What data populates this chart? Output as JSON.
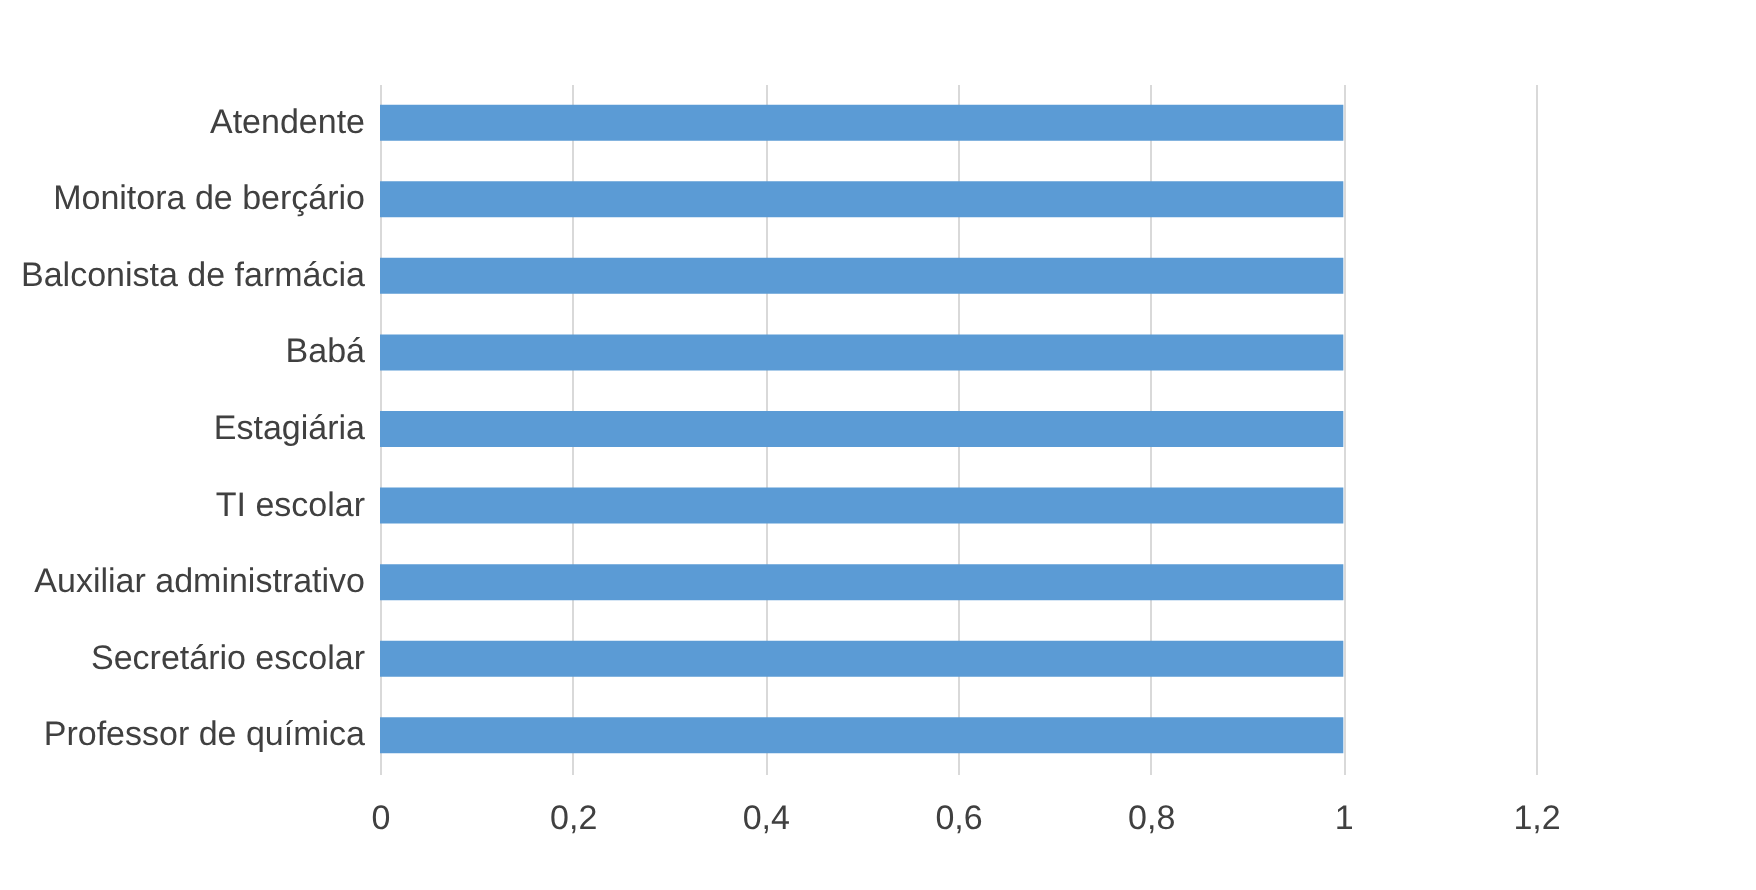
{
  "chart_data": {
    "type": "bar",
    "orientation": "horizontal",
    "categories": [
      "Atendente",
      "Monitora de berçário",
      "Balconista de farmácia",
      "Babá",
      "Estagiária",
      "TI escolar",
      "Auxiliar administrativo",
      "Secretário escolar",
      "Professor de química"
    ],
    "values": [
      1,
      1,
      1,
      1,
      1,
      1,
      1,
      1,
      1
    ],
    "color": "#5b9bd5",
    "xlim": [
      0,
      1.2
    ],
    "xticks": [
      0,
      {
        "value": 0.2,
        "label": "0,2"
      },
      {
        "value": 0.4,
        "label": "0,4"
      },
      {
        "value": 0.6,
        "label": "0,6"
      },
      {
        "value": 0.8,
        "label": "0,8"
      },
      1,
      {
        "value": 1.2,
        "label": "1,2"
      }
    ],
    "grid": "x"
  }
}
